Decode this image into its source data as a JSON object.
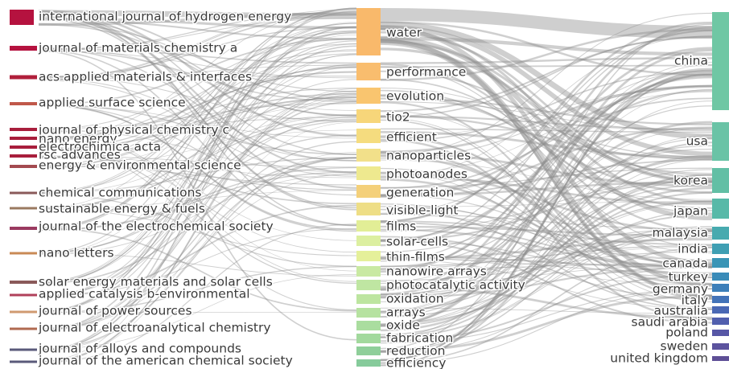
{
  "diagram": {
    "type": "sankey",
    "columns": [
      {
        "name": "",
        "nodes": [
          {
            "label": "international journal of hydrogen energy",
            "color": "#b5123f"
          },
          {
            "label": "journal of materials chemistry a",
            "color": "#b5123f"
          },
          {
            "label": "acs applied materials & interfaces",
            "color": "#b01f3b"
          },
          {
            "label": "applied surface science",
            "color": "#c0584a"
          },
          {
            "label": "journal of physical chemistry c",
            "color": "#a81e3c"
          },
          {
            "label": "nano energy",
            "color": "#a81e3c"
          },
          {
            "label": "electrochimica acta",
            "color": "#a81e3c"
          },
          {
            "label": "rsc advances",
            "color": "#a81e3c"
          },
          {
            "label": "energy & environmental science",
            "color": "#a34a50"
          },
          {
            "label": "chemical communications",
            "color": "#8a5a5a"
          },
          {
            "label": "sustainable energy & fuels",
            "color": "#9a7a60"
          },
          {
            "label": "journal of the electrochemical society",
            "color": "#9a3a60"
          },
          {
            "label": "nano letters",
            "color": "#c98a55"
          },
          {
            "label": "solar energy materials and solar cells",
            "color": "#8a5a5a"
          },
          {
            "label": "applied catalysis b-environmental",
            "color": "#b0405a"
          },
          {
            "label": "journal of power sources",
            "color": "#d09a70"
          },
          {
            "label": "journal of electroanalytical chemistry",
            "color": "#b06a50"
          },
          {
            "label": "journal of alloys and compounds",
            "color": "#5a5a7a"
          },
          {
            "label": "journal of the american chemical society",
            "color": "#5a5a7a"
          }
        ]
      },
      {
        "name": "",
        "nodes": [
          {
            "label": "water",
            "color": "#f9b96b"
          },
          {
            "label": "performance",
            "color": "#f9bd6e"
          },
          {
            "label": "evolution",
            "color": "#f9c56f"
          },
          {
            "label": "tio2",
            "color": "#f7d67a"
          },
          {
            "label": "efficient",
            "color": "#f5dc7f"
          },
          {
            "label": "nanoparticles",
            "color": "#f2e08a"
          },
          {
            "label": "photoanodes",
            "color": "#eee98f"
          },
          {
            "label": "generation",
            "color": "#f4d07a"
          },
          {
            "label": "visible-light",
            "color": "#eede86"
          },
          {
            "label": "films",
            "color": "#e2ee96"
          },
          {
            "label": "solar-cells",
            "color": "#dcefa0"
          },
          {
            "label": "thin-films",
            "color": "#e5f09a"
          },
          {
            "label": "nanowire arrays",
            "color": "#c9e9a2"
          },
          {
            "label": "photocatalytic activity",
            "color": "#bfe6a2"
          },
          {
            "label": "oxidation",
            "color": "#bde5a0"
          },
          {
            "label": "arrays",
            "color": "#b6e2a0"
          },
          {
            "label": "oxide",
            "color": "#aadd9f"
          },
          {
            "label": "fabrication",
            "color": "#a2d99d"
          },
          {
            "label": "reduction",
            "color": "#8fcf9a"
          },
          {
            "label": "efficiency",
            "color": "#86cb9b"
          }
        ]
      },
      {
        "name": "",
        "nodes": [
          {
            "label": "china",
            "color": "#6fc7a4"
          },
          {
            "label": "usa",
            "color": "#6ac3a6"
          },
          {
            "label": "korea",
            "color": "#62bfa5"
          },
          {
            "label": "japan",
            "color": "#58b9a8"
          },
          {
            "label": "malaysia",
            "color": "#47aaaf"
          },
          {
            "label": "india",
            "color": "#3f9fb3"
          },
          {
            "label": "canada",
            "color": "#3a95b6"
          },
          {
            "label": "turkey",
            "color": "#3a8bb8"
          },
          {
            "label": "germany",
            "color": "#3d7fb9"
          },
          {
            "label": "italy",
            "color": "#4373b8"
          },
          {
            "label": "australia",
            "color": "#4a68b4"
          },
          {
            "label": "saudi arabia",
            "color": "#515fae"
          },
          {
            "label": "poland",
            "color": "#5757a6"
          },
          {
            "label": "sweden",
            "color": "#5c539e"
          },
          {
            "label": "united kingdom",
            "color": "#5e4f96"
          }
        ]
      }
    ]
  }
}
